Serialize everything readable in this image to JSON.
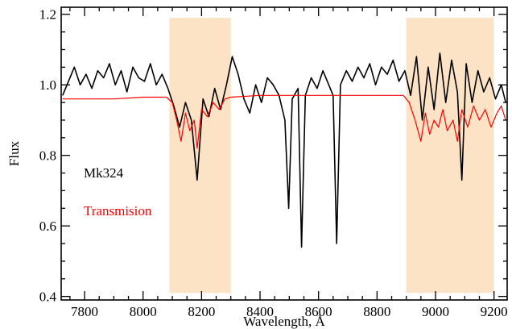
{
  "chart_data": {
    "type": "line",
    "title": "",
    "xlabel": "Wavelength, Å",
    "ylabel": "Flux",
    "xlim": [
      7720,
      9245
    ],
    "ylim": [
      0.39,
      1.22
    ],
    "x_ticks": [
      7800,
      8000,
      8200,
      8400,
      8600,
      8800,
      9000,
      9200
    ],
    "x_tick_labels": [
      "7800",
      "8000",
      "8200",
      "8400",
      "8600",
      "8800",
      "9000",
      "9200"
    ],
    "y_ticks": [
      0.4,
      0.6,
      0.8,
      1.0,
      1.2
    ],
    "y_tick_labels": [
      "0.4",
      "0.6",
      "0.8",
      "1.0",
      "1.2"
    ],
    "grid": false,
    "shaded_regions": [
      {
        "x0": 8090,
        "x1": 8300,
        "y0": 0.41,
        "y1": 1.19,
        "color": "#fde3c6"
      },
      {
        "x0": 8900,
        "x1": 9200,
        "y0": 0.41,
        "y1": 1.19,
        "color": "#fde3c6"
      }
    ],
    "series": [
      {
        "name": "Mk324",
        "color": "#000000",
        "points": [
          [
            7725,
            0.97
          ],
          [
            7745,
            1.01
          ],
          [
            7765,
            1.05
          ],
          [
            7785,
            1.0
          ],
          [
            7805,
            1.03
          ],
          [
            7825,
            0.99
          ],
          [
            7845,
            1.04
          ],
          [
            7865,
            1.02
          ],
          [
            7885,
            1.06
          ],
          [
            7905,
            1.0
          ],
          [
            7925,
            1.04
          ],
          [
            7945,
            0.98
          ],
          [
            7965,
            1.05
          ],
          [
            7985,
            1.02
          ],
          [
            8005,
            1.01
          ],
          [
            8025,
            1.06
          ],
          [
            8045,
            1.0
          ],
          [
            8065,
            1.03
          ],
          [
            8085,
            0.99
          ],
          [
            8105,
            0.94
          ],
          [
            8125,
            0.88
          ],
          [
            8145,
            0.95
          ],
          [
            8165,
            0.9
          ],
          [
            8185,
            0.73
          ],
          [
            8205,
            0.96
          ],
          [
            8225,
            0.91
          ],
          [
            8245,
            0.99
          ],
          [
            8265,
            0.93
          ],
          [
            8285,
            1.0
          ],
          [
            8305,
            1.08
          ],
          [
            8325,
            1.03
          ],
          [
            8345,
            0.96
          ],
          [
            8365,
            0.92
          ],
          [
            8385,
            1.0
          ],
          [
            8405,
            0.95
          ],
          [
            8425,
            1.02
          ],
          [
            8445,
            1.0
          ],
          [
            8465,
            0.97
          ],
          [
            8485,
            0.9
          ],
          [
            8498,
            0.65
          ],
          [
            8510,
            0.96
          ],
          [
            8530,
            0.99
          ],
          [
            8542,
            0.54
          ],
          [
            8555,
            0.97
          ],
          [
            8575,
            1.02
          ],
          [
            8595,
            0.99
          ],
          [
            8615,
            1.04
          ],
          [
            8635,
            1.0
          ],
          [
            8650,
            0.97
          ],
          [
            8662,
            0.55
          ],
          [
            8675,
            1.0
          ],
          [
            8695,
            1.04
          ],
          [
            8715,
            1.01
          ],
          [
            8735,
            1.05
          ],
          [
            8755,
            1.02
          ],
          [
            8775,
            1.06
          ],
          [
            8795,
            1.0
          ],
          [
            8815,
            1.05
          ],
          [
            8835,
            1.03
          ],
          [
            8855,
            1.07
          ],
          [
            8875,
            1.01
          ],
          [
            8895,
            1.04
          ],
          [
            8915,
            0.97
          ],
          [
            8935,
            1.08
          ],
          [
            8955,
            0.9
          ],
          [
            8975,
            1.05
          ],
          [
            8995,
            0.93
          ],
          [
            9015,
            1.09
          ],
          [
            9035,
            0.95
          ],
          [
            9055,
            1.07
          ],
          [
            9075,
            0.98
          ],
          [
            9090,
            0.73
          ],
          [
            9105,
            1.06
          ],
          [
            9125,
            0.95
          ],
          [
            9145,
            1.04
          ],
          [
            9165,
            0.98
          ],
          [
            9185,
            1.02
          ],
          [
            9205,
            0.96
          ],
          [
            9225,
            1.0
          ],
          [
            9240,
            0.95
          ]
        ]
      },
      {
        "name": "Transmision",
        "color": "#ff0000",
        "points": [
          [
            7725,
            0.96
          ],
          [
            7800,
            0.96
          ],
          [
            7900,
            0.96
          ],
          [
            8000,
            0.965
          ],
          [
            8080,
            0.965
          ],
          [
            8100,
            0.95
          ],
          [
            8115,
            0.9
          ],
          [
            8130,
            0.84
          ],
          [
            8145,
            0.92
          ],
          [
            8160,
            0.87
          ],
          [
            8175,
            0.9
          ],
          [
            8185,
            0.82
          ],
          [
            8200,
            0.93
          ],
          [
            8220,
            0.91
          ],
          [
            8240,
            0.95
          ],
          [
            8260,
            0.93
          ],
          [
            8280,
            0.96
          ],
          [
            8300,
            0.965
          ],
          [
            8400,
            0.97
          ],
          [
            8500,
            0.97
          ],
          [
            8600,
            0.97
          ],
          [
            8700,
            0.97
          ],
          [
            8800,
            0.97
          ],
          [
            8890,
            0.97
          ],
          [
            8910,
            0.95
          ],
          [
            8930,
            0.9
          ],
          [
            8950,
            0.84
          ],
          [
            8965,
            0.92
          ],
          [
            8980,
            0.86
          ],
          [
            8995,
            0.9
          ],
          [
            9010,
            0.88
          ],
          [
            9025,
            0.93
          ],
          [
            9040,
            0.87
          ],
          [
            9060,
            0.9
          ],
          [
            9075,
            0.84
          ],
          [
            9090,
            0.93
          ],
          [
            9110,
            0.88
          ],
          [
            9130,
            0.94
          ],
          [
            9150,
            0.9
          ],
          [
            9170,
            0.93
          ],
          [
            9190,
            0.88
          ],
          [
            9210,
            0.92
          ],
          [
            9225,
            0.94
          ],
          [
            9240,
            0.9
          ]
        ]
      }
    ],
    "legend": {
      "placement": "middle-left",
      "entries": [
        {
          "label": "Mk324",
          "color": "#000000"
        },
        {
          "label": "Transmision",
          "color": "#ff0000"
        }
      ]
    }
  }
}
